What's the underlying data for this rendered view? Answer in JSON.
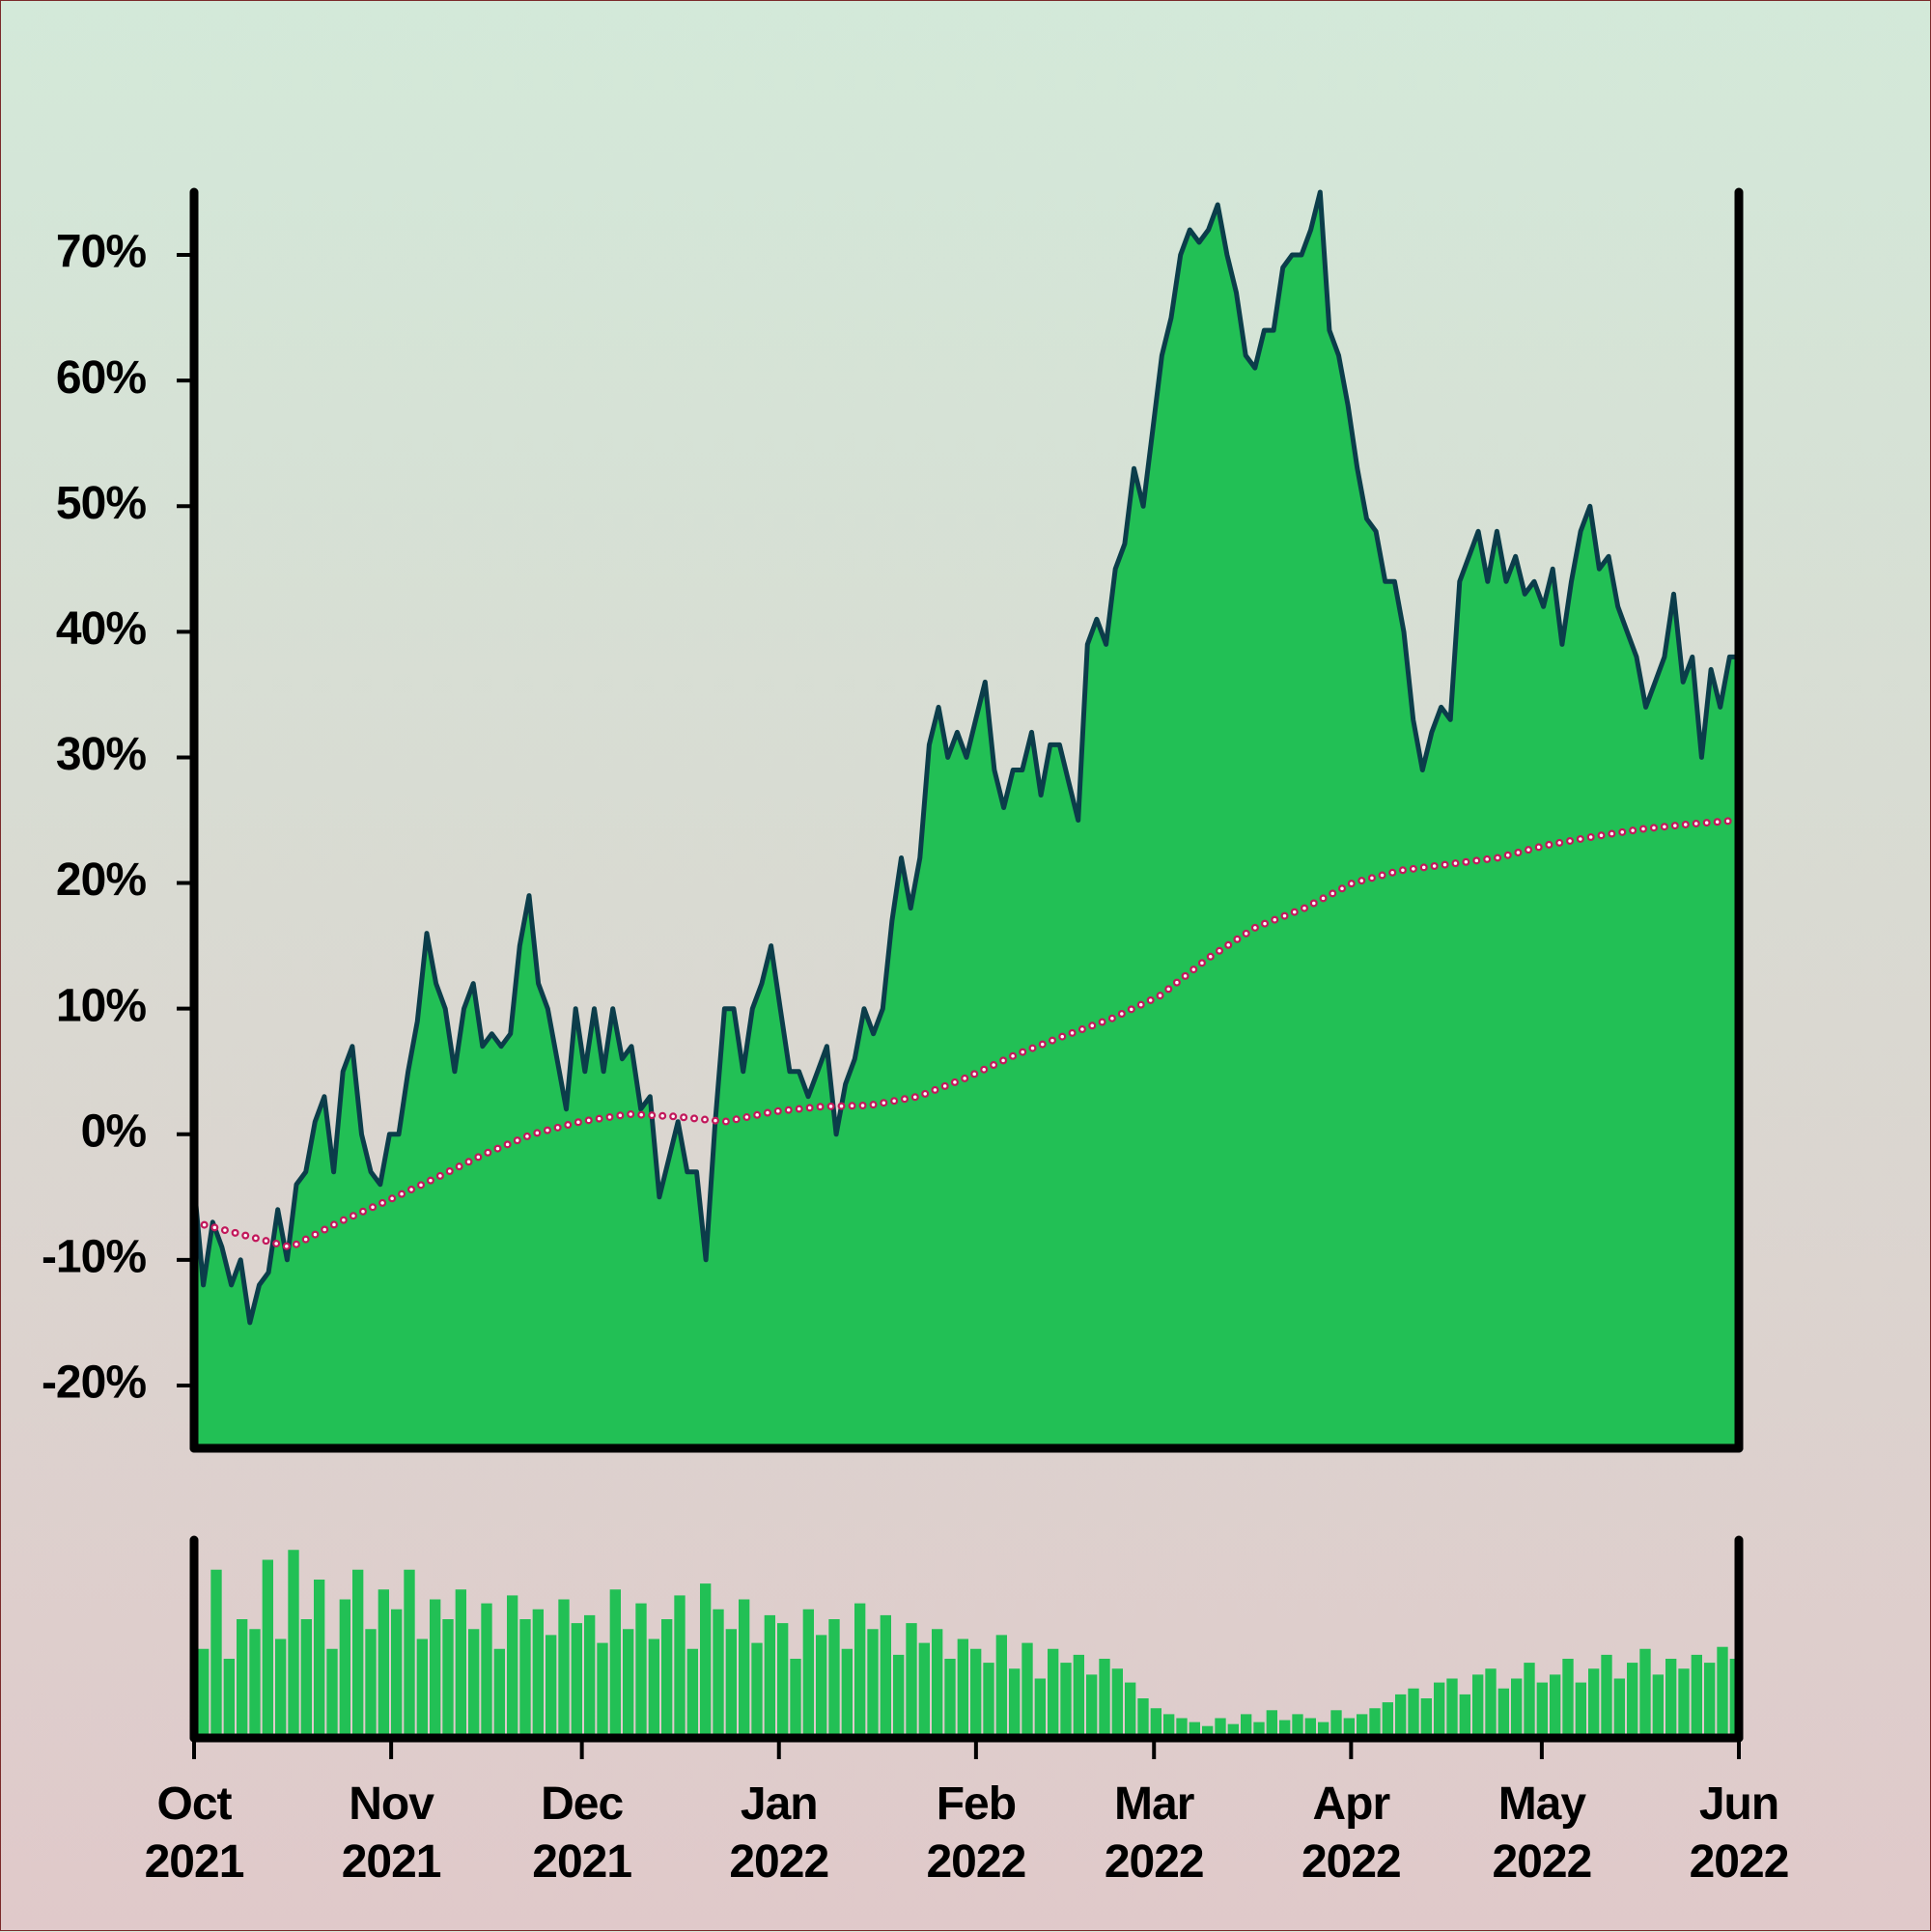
{
  "chart_data": {
    "type": "area",
    "xlim": [
      "2021-10",
      "2022-06"
    ],
    "xticks": [
      {
        "value": "2021-10",
        "label": "Oct 2021"
      },
      {
        "value": "2021-11",
        "label": "Nov 2021"
      },
      {
        "value": "2021-12",
        "label": "Dec 2021"
      },
      {
        "value": "2022-01",
        "label": "Jan 2022"
      },
      {
        "value": "2022-02",
        "label": "Feb 2022"
      },
      {
        "value": "2022-03",
        "label": "Mar 2022"
      },
      {
        "value": "2022-04",
        "label": "Apr 2022"
      },
      {
        "value": "2022-05",
        "label": "May 2022"
      },
      {
        "value": "2022-06",
        "label": "Jun 2022"
      }
    ],
    "ylim": [
      -25,
      75
    ],
    "yticks": [
      {
        "value": -20,
        "label": "-20%"
      },
      {
        "value": -10,
        "label": "-10%"
      },
      {
        "value": 0,
        "label": "0%"
      },
      {
        "value": 10,
        "label": "10%"
      },
      {
        "value": 20,
        "label": "20%"
      },
      {
        "value": 30,
        "label": "30%"
      },
      {
        "value": 40,
        "label": "40%"
      },
      {
        "value": 50,
        "label": "50%"
      },
      {
        "value": 60,
        "label": "60%"
      },
      {
        "value": 70,
        "label": "70%"
      }
    ],
    "series": [
      {
        "color": "#22c055",
        "line_color": "#0b3d4a",
        "values": [
          -4,
          -12,
          -7,
          -9,
          -12,
          -10,
          -15,
          -12,
          -11,
          -6,
          -10,
          -4,
          -3,
          1,
          3,
          -3,
          5,
          7,
          0,
          -3,
          -4,
          0,
          0,
          5,
          9,
          16,
          12,
          10,
          5,
          10,
          12,
          7,
          8,
          7,
          8,
          15,
          19,
          12,
          10,
          6,
          2,
          10,
          5,
          10,
          5,
          10,
          6,
          7,
          2,
          3,
          -5,
          -2,
          1,
          -3,
          -3,
          -10,
          1,
          10,
          10,
          5,
          10,
          12,
          15,
          10,
          5,
          5,
          3,
          5,
          7,
          0,
          4,
          6,
          10,
          8,
          10,
          17,
          22,
          18,
          22,
          31,
          34,
          30,
          32,
          30,
          33,
          36,
          29,
          26,
          29,
          29,
          32,
          27,
          31,
          31,
          28,
          25,
          39,
          41,
          39,
          45,
          47,
          53,
          50,
          56,
          62,
          65,
          70,
          72,
          71,
          72,
          74,
          70,
          67,
          62,
          61,
          64,
          64,
          69,
          70,
          70,
          72,
          75,
          64,
          62,
          58,
          53,
          49,
          48,
          44,
          44,
          40,
          33,
          29,
          32,
          34,
          33,
          44,
          46,
          48,
          44,
          48,
          44,
          46,
          43,
          44,
          42,
          45,
          39,
          44,
          48,
          50,
          45,
          46,
          42,
          40,
          38,
          34,
          36,
          38,
          43,
          36,
          38,
          30,
          37,
          34,
          38,
          38
        ]
      },
      {
        "color": "#c2185b",
        "values": [
          -7,
          -8,
          -9,
          -7,
          -5.3,
          -3.5,
          -1.6,
          0,
          1,
          1.6,
          1.4,
          1,
          1.8,
          2.2,
          2.3,
          3,
          4.5,
          6.3,
          7.8,
          9.2,
          11,
          14,
          16.5,
          18,
          20,
          21,
          21.5,
          22,
          23,
          23.7,
          24.3,
          24.7,
          25
        ]
      }
    ],
    "volume": {
      "color": "#22c055",
      "ylim": [
        0,
        100
      ],
      "values": [
        45,
        85,
        40,
        60,
        55,
        90,
        50,
        95,
        60,
        80,
        45,
        70,
        85,
        55,
        75,
        65,
        85,
        50,
        70,
        60,
        75,
        55,
        68,
        45,
        72,
        60,
        65,
        52,
        70,
        58,
        62,
        48,
        75,
        55,
        68,
        50,
        60,
        72,
        45,
        78,
        65,
        55,
        70,
        48,
        62,
        58,
        40,
        65,
        52,
        60,
        45,
        68,
        55,
        62,
        42,
        58,
        48,
        55,
        40,
        50,
        45,
        38,
        52,
        35,
        48,
        30,
        45,
        38,
        42,
        32,
        40,
        35,
        28,
        20,
        15,
        12,
        10,
        8,
        6,
        10,
        7,
        12,
        8,
        14,
        9,
        12,
        10,
        8,
        14,
        10,
        12,
        15,
        18,
        22,
        25,
        20,
        28,
        30,
        22,
        32,
        35,
        25,
        30,
        38,
        28,
        32,
        40,
        28,
        35,
        42,
        30,
        38,
        45,
        32,
        40,
        35,
        42,
        38,
        46,
        40
      ]
    }
  }
}
